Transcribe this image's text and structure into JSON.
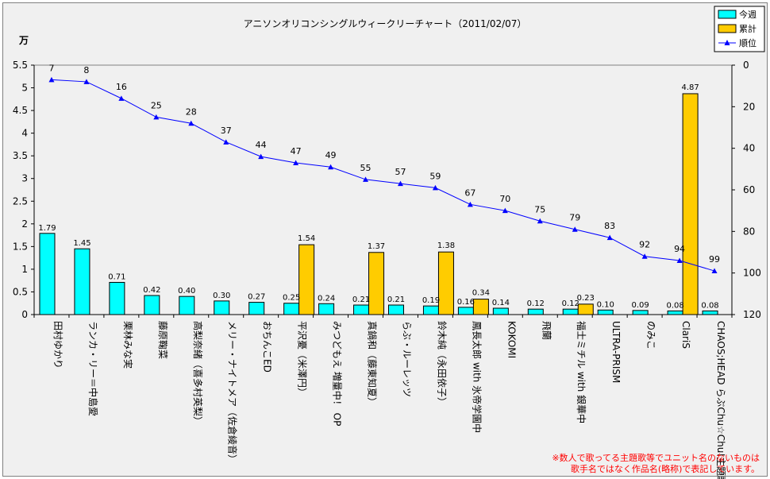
{
  "chart_data": {
    "type": "bar",
    "title": "アニソンオリコンシングルウィークリーチャート（2011/02/07）",
    "ylabel_left": "万",
    "ylim_left": [
      0,
      5.5
    ],
    "yticks_left": [
      "0",
      "0.5",
      "1",
      "1.5",
      "2",
      "2.5",
      "3",
      "3.5",
      "4",
      "4.5",
      "5",
      "5.5"
    ],
    "ylim_right": [
      120,
      0
    ],
    "yticks_right": [
      "0",
      "20",
      "40",
      "60",
      "80",
      "100",
      "120"
    ],
    "right_axis_reversed": true,
    "grid": false,
    "legend_position": "top-right",
    "categories": [
      "田村ゆかり",
      "ランカ・リー＝中島愛",
      "栗林みな実",
      "藤原鞠菜",
      "高梨奈緒（喜多村英梨）",
      "メリー・ナイトメア（佐倉綾音）",
      "おちんこED",
      "平沢憂（米澤円）",
      "みつどもえ 増量中！ OP",
      "真鍋和（藤東知夏）",
      "らぶ・ルーレッツ",
      "鈴木純（永田依子）",
      "鳳長太郎 with 氷帝学園中",
      "KOKOMI",
      "飛蘭",
      "福士ミチル with 銀華中",
      "ULTRA-PRISM",
      "のみこ",
      "ClariS",
      "CHAOS;HEAD らぶChu☆Chu!主題歌"
    ],
    "series": [
      {
        "name": "今週",
        "type": "bar",
        "axis": "left",
        "color": "#00ffff",
        "values": [
          1.79,
          1.45,
          0.71,
          0.42,
          0.4,
          0.3,
          0.27,
          0.25,
          0.24,
          0.21,
          0.21,
          0.19,
          0.16,
          0.14,
          0.12,
          0.12,
          0.1,
          0.09,
          0.08,
          0.08
        ],
        "labels": [
          "1.79",
          "1.45",
          "0.71",
          "0.42",
          "0.40",
          "0.30",
          "0.27",
          "0.25",
          "0.24",
          "0.21",
          "0.21",
          "0.19",
          "0.16",
          "0.14",
          "0.12",
          "0.12",
          "0.10",
          "0.09",
          "0.08",
          "0.08"
        ]
      },
      {
        "name": "累計",
        "type": "bar",
        "axis": "left",
        "color": "#ffcc00",
        "values": [
          null,
          null,
          null,
          null,
          null,
          null,
          null,
          1.54,
          null,
          1.37,
          null,
          1.38,
          0.34,
          null,
          null,
          0.23,
          null,
          null,
          4.87,
          null
        ],
        "labels": [
          null,
          null,
          null,
          null,
          null,
          null,
          null,
          "1.54",
          null,
          "1.37",
          null,
          "1.38",
          "0.34",
          null,
          null,
          "0.23",
          null,
          null,
          "4.87",
          null
        ]
      },
      {
        "name": "順位",
        "type": "line",
        "axis": "right",
        "color": "#0000ff",
        "values": [
          7,
          8,
          16,
          25,
          28,
          37,
          44,
          47,
          49,
          55,
          57,
          59,
          67,
          70,
          75,
          79,
          83,
          92,
          94,
          99
        ],
        "labels": [
          "7",
          "8",
          "16",
          "25",
          "28",
          "37",
          "44",
          "47",
          "49",
          "55",
          "57",
          "59",
          "67",
          "70",
          "75",
          "79",
          "83",
          "92",
          "94",
          "99"
        ]
      }
    ]
  },
  "note": [
    "※数人で歌ってる主題歌等でユニット名のないものは",
    "歌手名ではなく作品名(略称)で表記しています。"
  ],
  "colors": {
    "current": "#00ffff",
    "cumulative": "#ffcc00",
    "rank": "#0000ff",
    "note": "#ff0000"
  }
}
